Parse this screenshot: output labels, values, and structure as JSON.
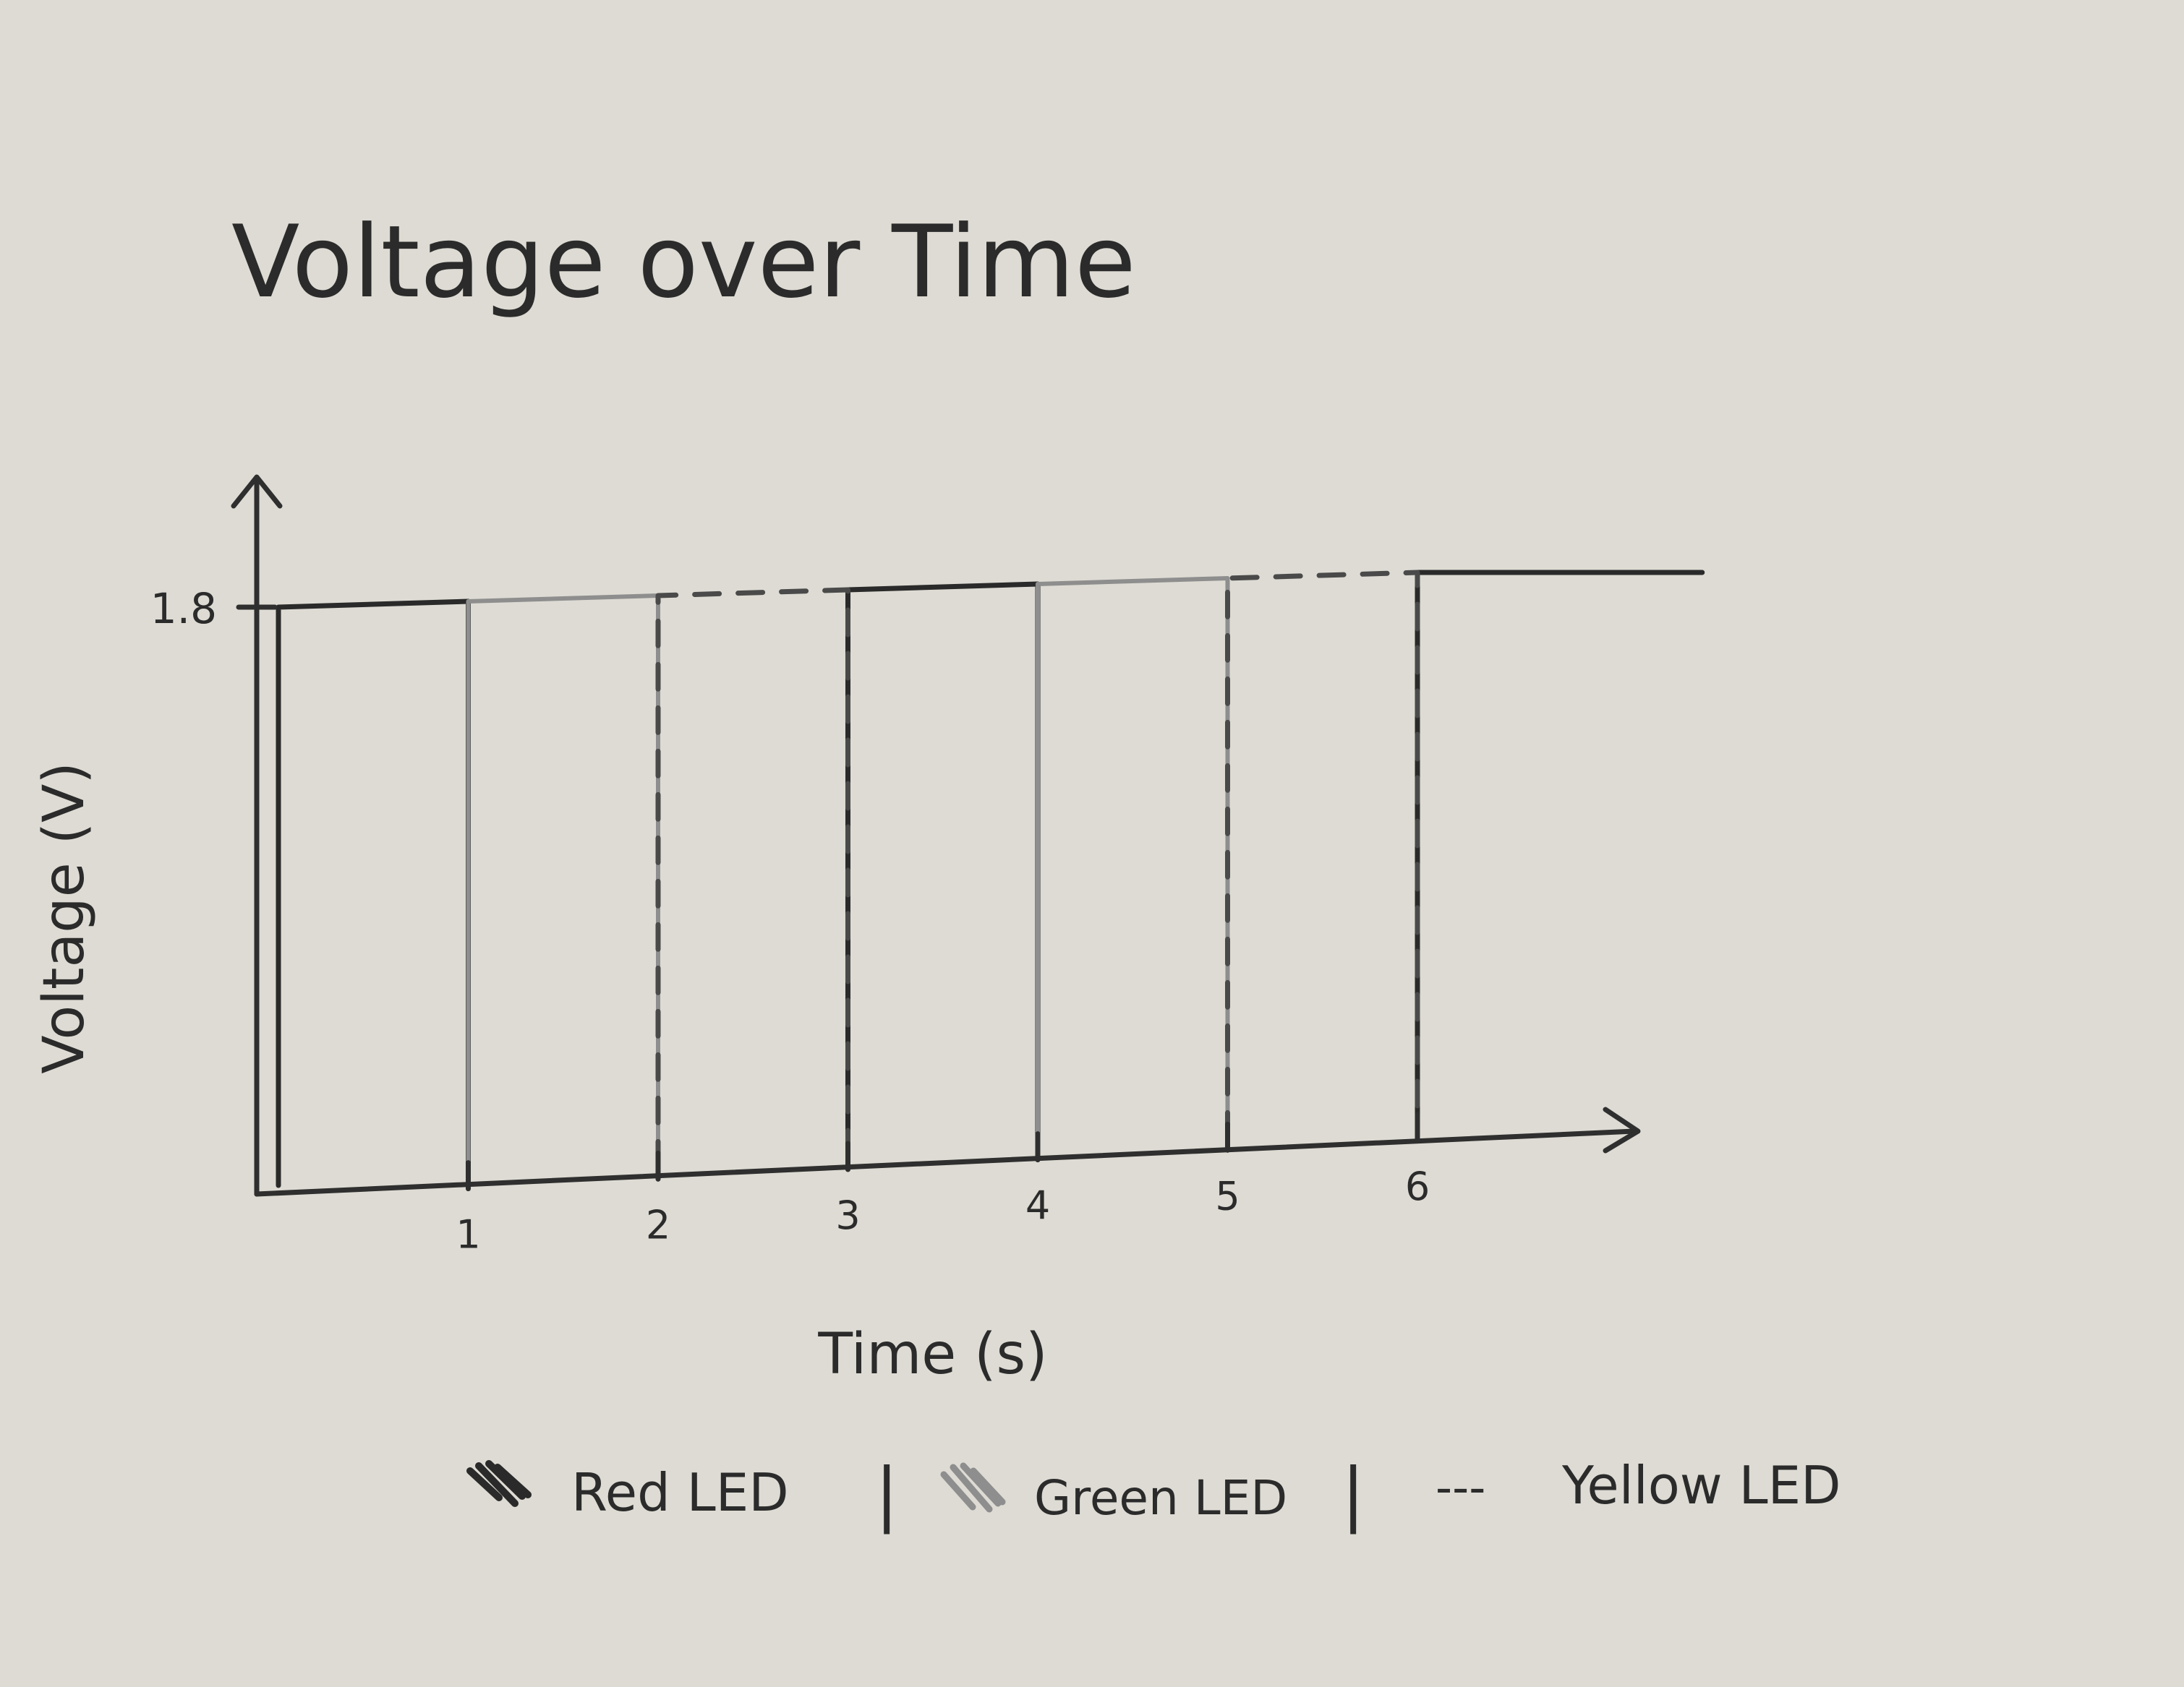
{
  "chart_data": {
    "type": "line",
    "title": "Voltage over Time",
    "xlabel": "Time (s)",
    "ylabel": "Voltage (V)",
    "x_ticks": [
      "1",
      "2",
      "3",
      "4",
      "5",
      "6"
    ],
    "y_ticks": [
      "1.8"
    ],
    "xlim": [
      0,
      6
    ],
    "ylim": [
      0,
      1.8
    ],
    "grid": false,
    "legend": "bottom",
    "series": [
      {
        "name": "Red LED",
        "style": "solid-dark",
        "color": "#2a2a2a",
        "segments": [
          [
            0,
            1
          ],
          [
            3,
            4
          ],
          [
            6,
            7.5
          ]
        ],
        "high": 1.8,
        "low": 0
      },
      {
        "name": "Green LED",
        "style": "solid-light",
        "color": "#8e8e8e",
        "segments": [
          [
            1,
            2
          ],
          [
            4,
            5
          ]
        ],
        "high": 1.8,
        "low": 0
      },
      {
        "name": "Yellow LED",
        "style": "dashed",
        "color": "#4a4a4a",
        "segments": [
          [
            2,
            3
          ],
          [
            5,
            6
          ]
        ],
        "high": 1.8,
        "low": 0
      }
    ],
    "legend_separator": "|",
    "legend_dash_glyph": "---"
  }
}
